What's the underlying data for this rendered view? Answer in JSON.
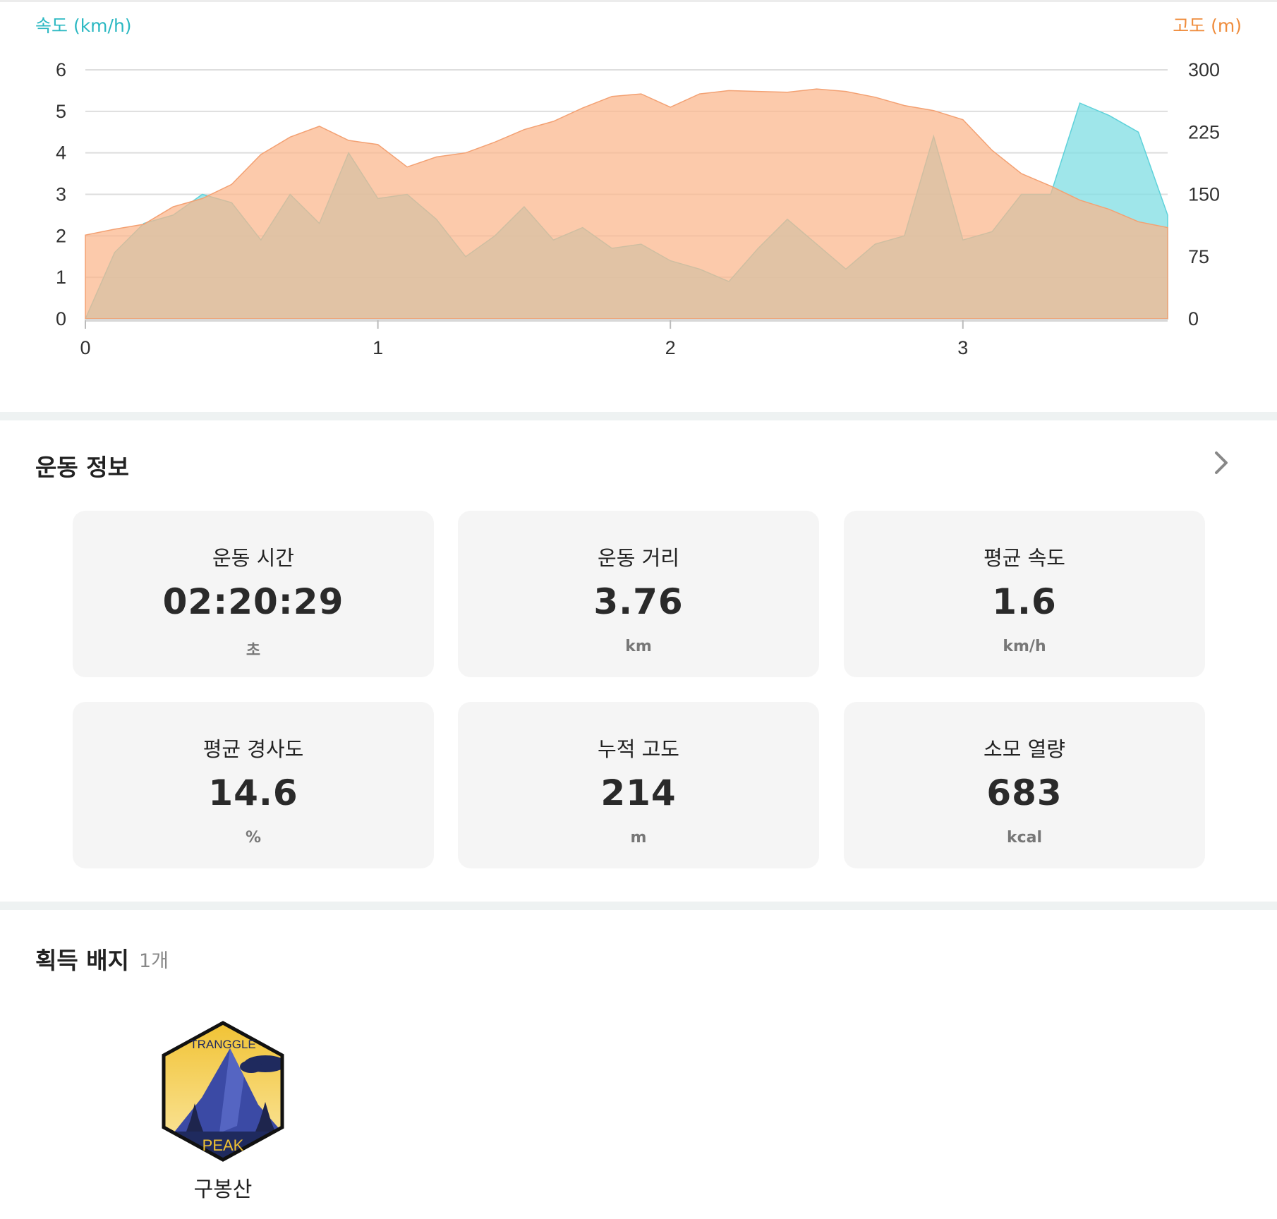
{
  "chart_data": {
    "type": "area",
    "x": [
      0,
      0.1,
      0.2,
      0.3,
      0.4,
      0.5,
      0.6,
      0.7,
      0.8,
      0.9,
      1.0,
      1.1,
      1.2,
      1.3,
      1.4,
      1.5,
      1.6,
      1.7,
      1.8,
      1.9,
      2.0,
      2.1,
      2.2,
      2.3,
      2.4,
      2.5,
      2.6,
      2.7,
      2.8,
      2.9,
      3.0,
      3.1,
      3.2,
      3.3,
      3.4,
      3.5,
      3.6,
      3.7
    ],
    "series": [
      {
        "name": "속도 (km/h)",
        "axis": "left",
        "color": "#7fdde3",
        "values": [
          0,
          1.6,
          2.3,
          2.5,
          3.0,
          2.8,
          1.9,
          3.0,
          2.3,
          4.0,
          2.9,
          3.0,
          2.4,
          1.5,
          2.0,
          2.7,
          1.9,
          2.2,
          1.7,
          1.8,
          1.4,
          1.2,
          0.9,
          1.7,
          2.4,
          1.8,
          1.2,
          1.8,
          2.0,
          4.4,
          1.9,
          2.1,
          3.0,
          3.0,
          5.2,
          4.9,
          4.5,
          2.5
        ]
      },
      {
        "name": "고도 (m)",
        "axis": "right",
        "color": "#fbb68a",
        "values": [
          101,
          108,
          114,
          135,
          145,
          162,
          198,
          219,
          232,
          215,
          210,
          183,
          195,
          200,
          213,
          228,
          238,
          254,
          268,
          271,
          255,
          271,
          275,
          274,
          273,
          277,
          274,
          267,
          257,
          251,
          240,
          203,
          175,
          160,
          143,
          132,
          117,
          110
        ]
      }
    ],
    "xlabel": "",
    "xticks": [
      0,
      1,
      2,
      3
    ],
    "xlim": [
      0,
      3.7
    ],
    "ylabel_left": "속도 (km/h)",
    "ylabel_right": "고도 (m)",
    "ylim_left": [
      0,
      6
    ],
    "ylim_right": [
      0,
      300
    ],
    "yticks_left": [
      0,
      1,
      2,
      3,
      4,
      5,
      6
    ],
    "yticks_right": [
      0,
      75,
      150,
      225,
      300
    ],
    "grid": true
  },
  "workout": {
    "title": "운동 정보",
    "stats": [
      {
        "label": "운동 시간",
        "value": "02:20:29",
        "unit": "초"
      },
      {
        "label": "운동 거리",
        "value": "3.76",
        "unit": "km"
      },
      {
        "label": "평균 속도",
        "value": "1.6",
        "unit": "km/h"
      },
      {
        "label": "평균 경사도",
        "value": "14.6",
        "unit": "%"
      },
      {
        "label": "누적 고도",
        "value": "214",
        "unit": "m"
      },
      {
        "label": "소모 열량",
        "value": "683",
        "unit": "kcal"
      }
    ]
  },
  "badges": {
    "title": "획득 배지",
    "count": "1개",
    "items": [
      {
        "name": "구봉산",
        "top_text": "TRANGGLE",
        "bottom_text": "PEAK",
        "icon": "mountain-peak-badge-icon"
      }
    ]
  },
  "colors": {
    "speed": "#2bb8c2",
    "altitude": "#ef8c3c",
    "card_bg": "#f5f5f5"
  }
}
